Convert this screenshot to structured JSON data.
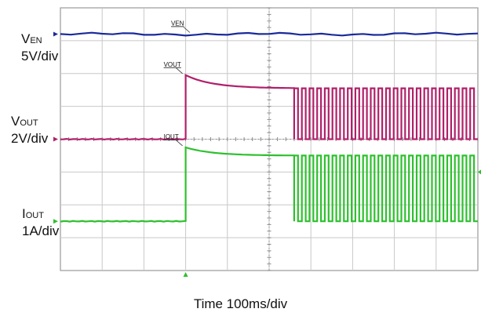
{
  "chart_data": {
    "type": "line",
    "x_units": "div",
    "y_units": "div",
    "xlim": [
      0,
      10
    ],
    "ylim": [
      0,
      8
    ],
    "grid": true,
    "channels": [
      {
        "label_main": "V",
        "label_sub": "EN",
        "scale": "5V/div",
        "marker": "VEN",
        "color": "#1a2a9a",
        "baseline_div": 7.2,
        "segments": [
          {
            "kind": "flat",
            "x": [
              0,
              10
            ],
            "y": 7.2
          }
        ]
      },
      {
        "label_main": "V",
        "label_sub": "OUT",
        "scale": "2V/div",
        "marker": "VOUT",
        "color": "#b0206a",
        "baseline_div": 4.0,
        "segments": [
          {
            "kind": "flat",
            "x": [
              0,
              3
            ],
            "y": 4.0
          },
          {
            "kind": "step_decay",
            "x": [
              3,
              5.6
            ],
            "y_start": 5.95,
            "y_end": 5.55
          },
          {
            "kind": "square",
            "x": [
              5.6,
              10
            ],
            "y_low": 4.0,
            "y_high": 5.55,
            "cycles": 24
          }
        ]
      },
      {
        "label_main": "I",
        "label_sub": "OUT",
        "scale": "1A/div",
        "marker": "IOUT",
        "color": "#2ec02e",
        "baseline_div": 1.5,
        "segments": [
          {
            "kind": "flat",
            "x": [
              0,
              3
            ],
            "y": 1.5
          },
          {
            "kind": "step_decay",
            "x": [
              3,
              5.6
            ],
            "y_start": 3.75,
            "y_end": 3.5
          },
          {
            "kind": "square",
            "x": [
              5.6,
              10
            ],
            "y_low": 1.5,
            "y_high": 3.5,
            "cycles": 24
          }
        ]
      }
    ],
    "xlabel": "Time 100ms/div"
  }
}
